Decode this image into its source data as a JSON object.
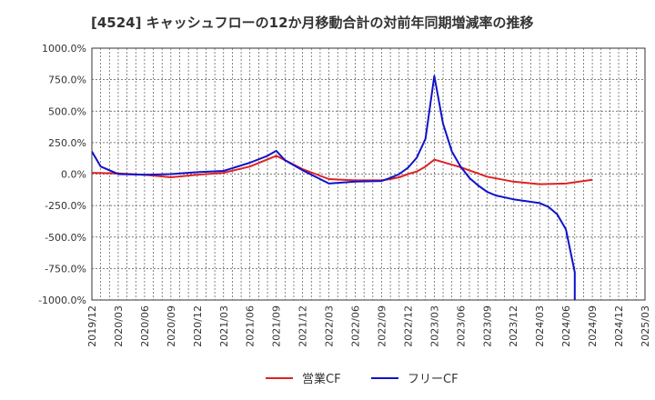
{
  "chart_data": {
    "type": "line",
    "title": "[4524]  キャッシュフローの12か月移動合計の対前年同期増減率の推移",
    "xlabel": "",
    "ylabel": "",
    "ylim": [
      -1000,
      1000
    ],
    "grid": true,
    "legend": "bottom",
    "y_ticks": [
      "1000.0%",
      "750.0%",
      "500.0%",
      "250.0%",
      "0.0%",
      "-250.0%",
      "-500.0%",
      "-750.0%",
      "-1000.0%"
    ],
    "x_ticks": [
      "2019/12",
      "2020/03",
      "2020/06",
      "2020/09",
      "2020/12",
      "2021/03",
      "2021/06",
      "2021/09",
      "2021/12",
      "2022/03",
      "2022/06",
      "2022/09",
      "2022/12",
      "2023/03",
      "2023/06",
      "2023/09",
      "2023/12",
      "2024/03",
      "2024/06",
      "2024/09",
      "2024/12",
      "2025/03"
    ],
    "series": [
      {
        "name": "営業CF",
        "color": "#dd2222",
        "points": [
          [
            "2019/12",
            10
          ],
          [
            "2020/03",
            5
          ],
          [
            "2020/06",
            -5
          ],
          [
            "2020/09",
            -25
          ],
          [
            "2020/12",
            -5
          ],
          [
            "2021/03",
            10
          ],
          [
            "2021/06",
            60
          ],
          [
            "2021/09",
            145
          ],
          [
            "2021/12",
            40
          ],
          [
            "2022/03",
            -40
          ],
          [
            "2022/06",
            -50
          ],
          [
            "2022/09",
            -50
          ],
          [
            "2022/10",
            -40
          ],
          [
            "2022/11",
            -25
          ],
          [
            "2022/12",
            0
          ],
          [
            "2023/01",
            20
          ],
          [
            "2023/02",
            60
          ],
          [
            "2023/03",
            115
          ],
          [
            "2023/06",
            55
          ],
          [
            "2023/09",
            -20
          ],
          [
            "2023/12",
            -60
          ],
          [
            "2024/03",
            -80
          ],
          [
            "2024/06",
            -75
          ],
          [
            "2024/09",
            -45
          ]
        ]
      },
      {
        "name": "フリーCF",
        "color": "#1111cc",
        "points": [
          [
            "2019/12",
            180
          ],
          [
            "2020/01",
            60
          ],
          [
            "2020/03",
            0
          ],
          [
            "2020/06",
            -5
          ],
          [
            "2020/09",
            0
          ],
          [
            "2020/12",
            15
          ],
          [
            "2021/03",
            25
          ],
          [
            "2021/06",
            90
          ],
          [
            "2021/08",
            145
          ],
          [
            "2021/09",
            185
          ],
          [
            "2021/10",
            110
          ],
          [
            "2021/12",
            30
          ],
          [
            "2022/02",
            -40
          ],
          [
            "2022/03",
            -75
          ],
          [
            "2022/06",
            -60
          ],
          [
            "2022/09",
            -55
          ],
          [
            "2022/10",
            -30
          ],
          [
            "2022/11",
            0
          ],
          [
            "2022/12",
            50
          ],
          [
            "2023/01",
            130
          ],
          [
            "2023/02",
            280
          ],
          [
            "2023/03",
            780
          ],
          [
            "2023/04",
            400
          ],
          [
            "2023/05",
            180
          ],
          [
            "2023/06",
            60
          ],
          [
            "2023/07",
            -30
          ],
          [
            "2023/08",
            -90
          ],
          [
            "2023/09",
            -140
          ],
          [
            "2023/10",
            -170
          ],
          [
            "2023/12",
            -200
          ],
          [
            "2024/03",
            -230
          ],
          [
            "2024/04",
            -260
          ],
          [
            "2024/05",
            -320
          ],
          [
            "2024/06",
            -440
          ],
          [
            "2024/07",
            -780
          ],
          [
            "2024/07",
            -1000
          ]
        ]
      }
    ]
  }
}
